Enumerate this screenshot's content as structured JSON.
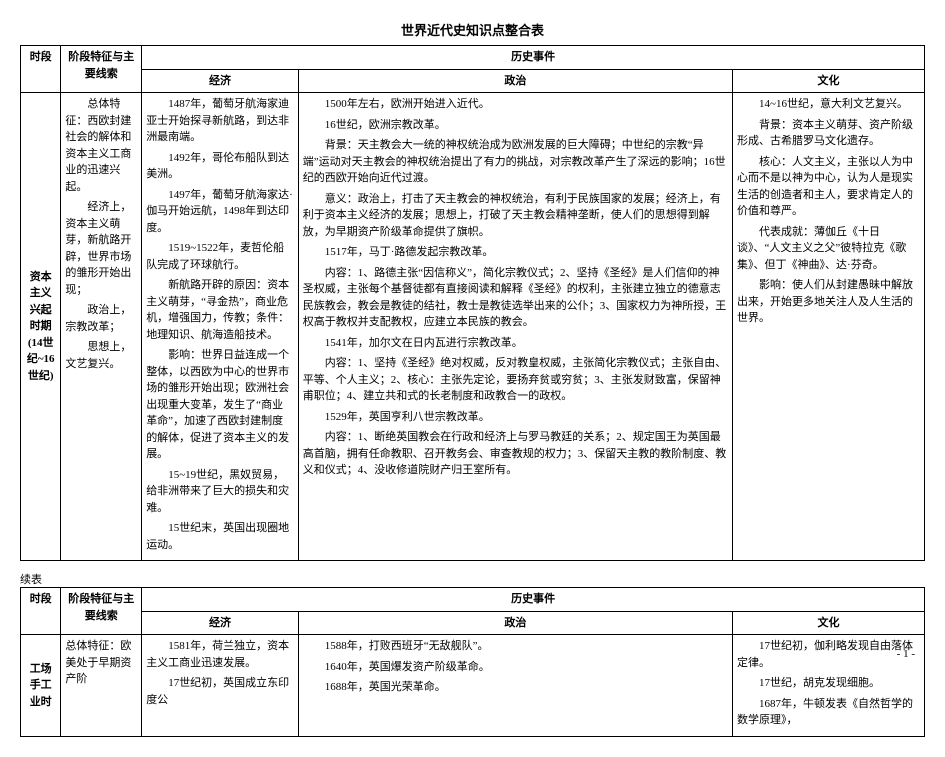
{
  "doc_title": "世界近代史知识点整合表",
  "headers": {
    "period": "时段",
    "feature": "阶段特征与主要线索",
    "events": "历史事件",
    "economy": "经济",
    "politics": "政治",
    "culture": "文化"
  },
  "row1": {
    "period_label": "资本主义兴起时期(14世纪~16世纪)",
    "feature": "总体特征：西欧封建社会的解体和资本主义工商业的迅速兴起。\n经济上，资本主义萌芽，新航路开辟，世界市场的雏形开始出现；\n政治上，宗教改革；\n思想上，文艺复兴。",
    "economy": "1487年，葡萄牙航海家迪亚士开始探寻新航路，到达非洲最南端。\n1492年，哥伦布船队到达美洲。\n1497年，葡萄牙航海家达·伽马开始远航，1498年到达印度。\n1519~1522年，麦哲伦船队完成了环球航行。\n新航路开辟的原因：资本主义萌芽，“寻金热”，商业危机，增强国力，传教；条件：地理知识、航海造船技术。\n影响：世界日益连成一个整体，以西欧为中心的世界市场的雏形开始出现；欧洲社会出现重大变革，发生了“商业革命”，加速了西欧封建制度的解体，促进了资本主义的发展。\n15~19世纪，黑奴贸易，给非洲带来了巨大的损失和灾难。\n15世纪末，英国出现圈地运动。",
    "politics": "1500年左右，欧洲开始进入近代。\n16世纪，欧洲宗教改革。\n背景：天主教会大一统的神权统治成为欧洲发展的巨大障碍；中世纪的宗教“异端”运动对天主教会的神权统治提出了有力的挑战，对宗教改革产生了深远的影响；16世纪的西欧开始向近代过渡。\n意义：政治上，打击了天主教会的神权统治，有利于民族国家的发展；经济上，有利于资本主义经济的发展；思想上，打破了天主教会精神垄断，使人们的思想得到解放，为早期资产阶级革命提供了旗帜。\n1517年，马丁·路德发起宗教改革。\n内容：1、路德主张“因信称义”，简化宗教仪式；2、坚持《圣经》是人们信仰的神圣权威，主张每个基督徒都有直接阅读和解释《圣经》的权利，主张建立独立的德意志民族教会，教会是教徒的结社，教士是教徒选举出来的公仆；3、国家权力为神所授，王权高于教权并支配教权，应建立本民族的教会。\n1541年，加尔文在日内瓦进行宗教改革。\n内容：1、坚持《圣经》绝对权威，反对教皇权威，主张简化宗教仪式；主张自由、平等、个人主义；2、核心：主张先定论，要扬弃贫或穷贫；3、主张发财致富，保留神甫职位；4、建立共和式的长老制度和政教合一的政权。\n1529年，英国亨利八世宗教改革。\n内容：1、断绝英国教会在行政和经济上与罗马教廷的关系；2、规定国王为英国最高首脑，拥有任命教职、召开教务会、审查教规的权力；3、保留天主教的教阶制度、教义和仪式；4、没收修道院财产归王室所有。",
    "culture": "14~16世纪，意大利文艺复兴。\n背景：资本主义萌芽、资产阶级形成、古希腊罗马文化遗存。\n核心：人文主义，主张以人为中心而不是以神为中心，认为人是现实生活的创造者和主人，要求肯定人的价值和尊严。\n代表成就：薄伽丘《十日谈》、“人文主义之父”彼特拉克《歌集》、但丁《神曲》、达·芬奇。\n影响：使人们从封建愚昧中解放出来，开始更多地关注人及人生活的世界。"
  },
  "continue_label": "续表",
  "row2": {
    "period_label": "工场手工业时",
    "feature": "总体特征：欧美处于早期资产阶",
    "economy": "1581年，荷兰独立，资本主义工商业迅速发展。\n17世纪初，英国成立东印度公",
    "politics": "1588年，打败西班牙“无敌舰队”。\n1640年，英国爆发资产阶级革命。\n1688年，英国光荣革命。",
    "culture": "17世纪初，伽利略发现自由落体定律。\n17世纪，胡克发现细胞。\n1687年，牛顿发表《自然哲学的数学原理》，"
  },
  "page_number": "- 1 -"
}
